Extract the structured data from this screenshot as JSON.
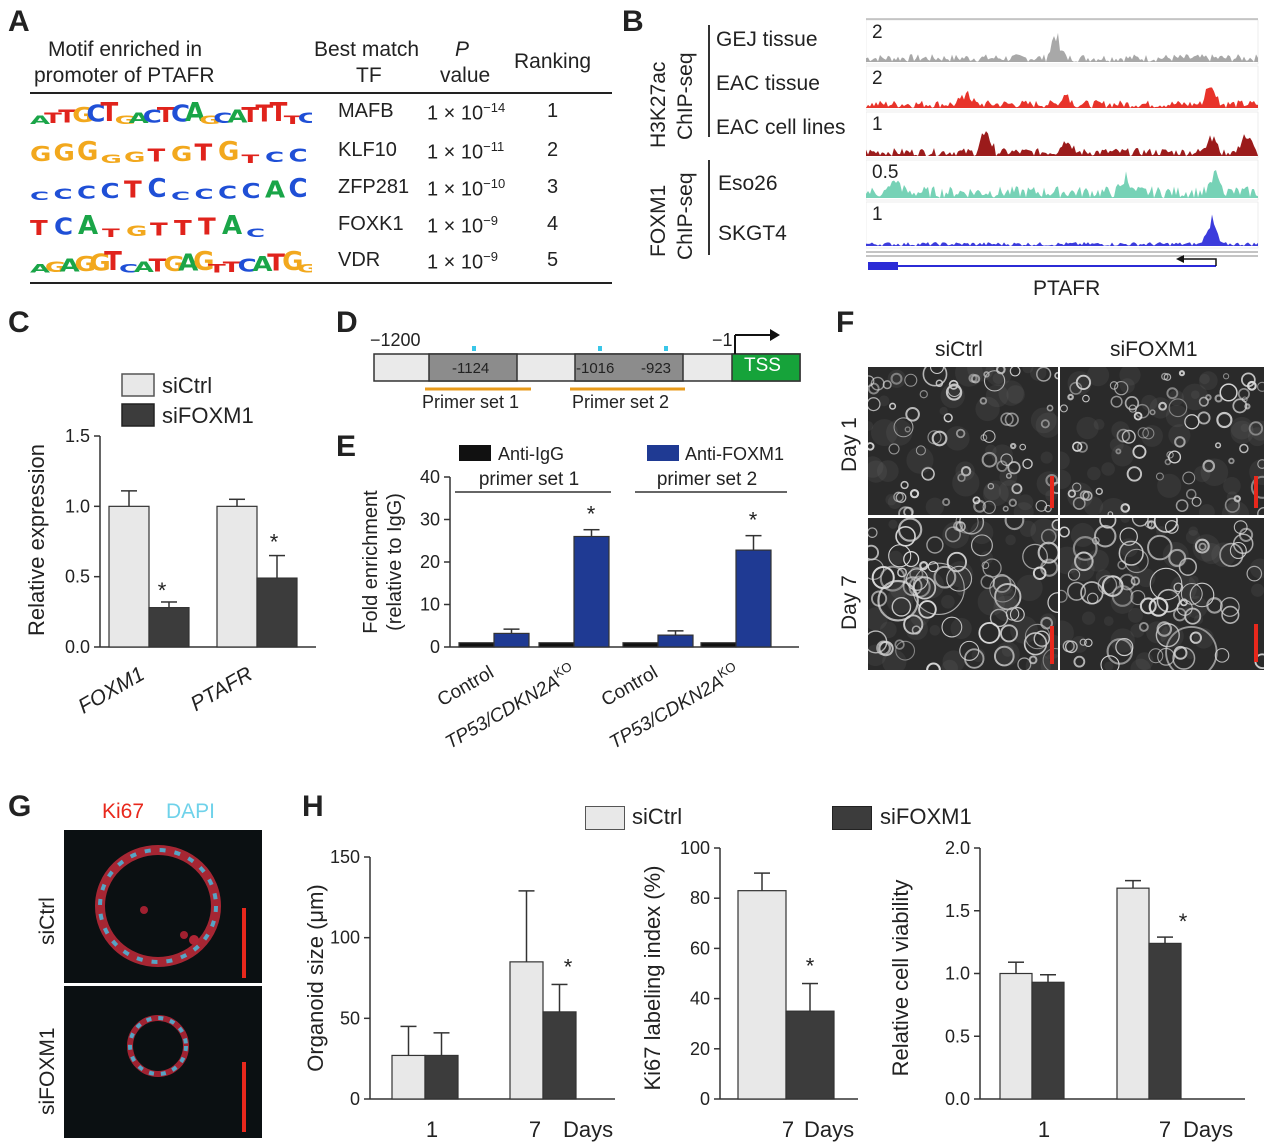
{
  "panels": {
    "A": "A",
    "B": "B",
    "C": "C",
    "D": "D",
    "E": "E",
    "F": "F",
    "G": "G",
    "H": "H"
  },
  "panelA": {
    "col_motif": [
      "Motif enriched in",
      "promoter of PTAFR"
    ],
    "col_tf": [
      "Best match",
      "TF"
    ],
    "col_p": [
      "P",
      "value"
    ],
    "col_rank": "Ranking",
    "rows": [
      {
        "logo": "ATTGCTGACTCAGCATTTTC",
        "tf": "MAFB",
        "p_base": "1 × 10",
        "p_exp": "−14",
        "rank": "1"
      },
      {
        "logo": "GGGGGTGTGTCC",
        "tf": "KLF10",
        "p_base": "1 × 10",
        "p_exp": "−11",
        "rank": "2"
      },
      {
        "logo": "CCCCTCCCCCAC",
        "tf": "ZFP281",
        "p_base": "1 × 10",
        "p_exp": "−10",
        "rank": "3"
      },
      {
        "logo": "TCATGTTTAC",
        "tf": "FOXK1",
        "p_base": "1 × 10",
        "p_exp": "−9",
        "rank": "4"
      },
      {
        "logo": "AGAGGTCATGAGTTCATGG",
        "tf": "VDR",
        "p_base": "1 × 10",
        "p_exp": "−9",
        "rank": "5"
      }
    ]
  },
  "panelB": {
    "group1": [
      "H3K27ac",
      "ChIP-seq"
    ],
    "group2": [
      "FOXM1",
      "ChIP-seq"
    ],
    "tracks": [
      {
        "name": "GEJ  tissue",
        "scale": "2",
        "color": "#a8a8a8"
      },
      {
        "name": "EAC tissue",
        "scale": "2",
        "color": "#e8332a"
      },
      {
        "name": "EAC cell lines",
        "scale": "1",
        "color": "#9b1b1b"
      },
      {
        "name": "Eso26",
        "scale": "0.5",
        "color": "#76d2b6"
      },
      {
        "name": "SKGT4",
        "scale": "1",
        "color": "#3b3bdc"
      }
    ],
    "gene": "PTAFR"
  },
  "panelC": {
    "legend": [
      "siCtrl",
      "siFOXM1"
    ],
    "ylabel": "Relative expression",
    "colors": {
      "ctrl": "#e8e8e8",
      "fox": "#3c3c3c"
    },
    "significance": "*"
  },
  "panelD": {
    "start": "−1200",
    "end": "−1",
    "sites": [
      "-1124",
      "-1016",
      "-923"
    ],
    "tss": "TSS",
    "primers": [
      "Primer set 1",
      "Primer set 2"
    ]
  },
  "panelE": {
    "legend": [
      "Anti-IgG",
      "Anti-FOXM1"
    ],
    "groups": [
      "primer set 1",
      "primer set 2"
    ],
    "ylabel": [
      "Fold enrichment",
      "(relative to IgG)"
    ],
    "xlabel_plain": "Control",
    "xlabel_ko_main": "TP53/CDKN2A",
    "xlabel_ko_sup": "KO",
    "colors": {
      "igg": "#111111",
      "fox": "#1f3a93"
    }
  },
  "panelF": {
    "cols": [
      "siCtrl",
      "siFOXM1"
    ],
    "rows": [
      "Day 1",
      "Day 7"
    ]
  },
  "panelG": {
    "stain1": "Ki67",
    "stain2": "DAPI",
    "rows": [
      "siCtrl",
      "siFOXM1"
    ]
  },
  "panelH": {
    "legend": [
      "siCtrl",
      "siFOXM1"
    ],
    "ylabel1": "Organoid size (μm)",
    "ylabel2": "Ki67 labeling index (%)",
    "ylabel3": "Relative cell viability",
    "days": "Days"
  },
  "chart_data": [
    {
      "type": "bar",
      "panel": "C",
      "categories": [
        "FOXM1",
        "PTAFR"
      ],
      "ylabel": "Relative expression",
      "ylim": [
        0,
        1.5
      ],
      "yticks": [
        "0.0",
        "0.5",
        "1.0",
        "1.5"
      ],
      "series": [
        {
          "name": "siCtrl",
          "values": [
            1.0,
            1.0
          ],
          "err": [
            0.11,
            0.05
          ]
        },
        {
          "name": "siFOXM1",
          "values": [
            0.28,
            0.49
          ],
          "err": [
            0.04,
            0.16
          ]
        }
      ]
    },
    {
      "type": "bar",
      "panel": "E",
      "categories": [
        "Control",
        "TP53/CDKN2A KO",
        "Control",
        "TP53/CDKN2A KO"
      ],
      "ylabel": "Fold enrichment (relative to IgG)",
      "ylim": [
        0,
        40
      ],
      "yticks": [
        "0",
        "10",
        "20",
        "30",
        "40"
      ],
      "series": [
        {
          "name": "Anti-IgG",
          "values": [
            1,
            1,
            1,
            1
          ],
          "err": [
            0,
            0,
            0,
            0
          ]
        },
        {
          "name": "Anti-FOXM1",
          "values": [
            3.2,
            26,
            2.8,
            22.8
          ],
          "err": [
            1,
            1.6,
            1,
            3.4
          ]
        }
      ]
    },
    {
      "type": "bar",
      "panel": "H1",
      "categories": [
        "1",
        "7"
      ],
      "ylabel": "Organoid size (μm)",
      "ylim": [
        0,
        150
      ],
      "yticks": [
        "0",
        "50",
        "100",
        "150"
      ],
      "series": [
        {
          "name": "siCtrl",
          "values": [
            27,
            85
          ],
          "err": [
            18,
            44
          ]
        },
        {
          "name": "siFOXM1",
          "values": [
            27,
            54
          ],
          "err": [
            14,
            17
          ]
        }
      ]
    },
    {
      "type": "bar",
      "panel": "H2",
      "categories": [
        "7"
      ],
      "ylabel": "Ki67 labeling index (%)",
      "ylim": [
        0,
        100
      ],
      "yticks": [
        "0",
        "20",
        "40",
        "60",
        "80",
        "100"
      ],
      "series": [
        {
          "name": "siCtrl",
          "values": [
            83
          ],
          "err": [
            7
          ]
        },
        {
          "name": "siFOXM1",
          "values": [
            35
          ],
          "err": [
            11
          ]
        }
      ]
    },
    {
      "type": "bar",
      "panel": "H3",
      "categories": [
        "1",
        "7"
      ],
      "ylabel": "Relative cell viability",
      "ylim": [
        0,
        2.0
      ],
      "yticks": [
        "0.0",
        "0.5",
        "1.0",
        "1.5",
        "2.0"
      ],
      "series": [
        {
          "name": "siCtrl",
          "values": [
            1.0,
            1.68
          ],
          "err": [
            0.09,
            0.06
          ]
        },
        {
          "name": "siFOXM1",
          "values": [
            0.93,
            1.24
          ],
          "err": [
            0.06,
            0.05
          ]
        }
      ]
    }
  ]
}
